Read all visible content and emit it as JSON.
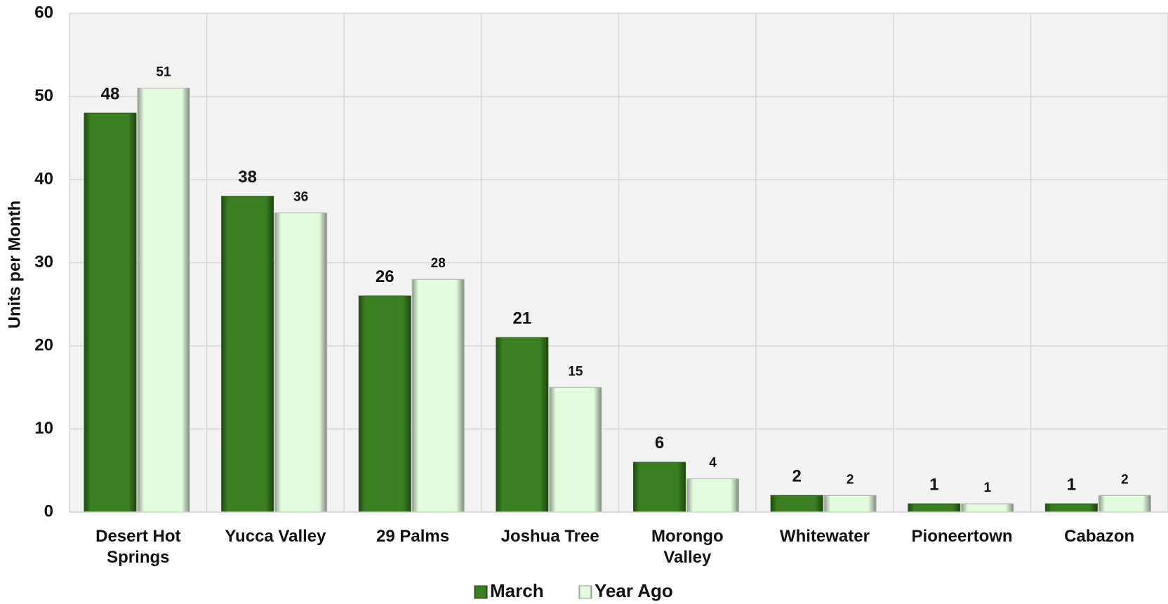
{
  "chart_data": {
    "type": "bar",
    "y_axis_label": "Units per Month",
    "categories": [
      [
        "Desert Hot",
        "Springs"
      ],
      [
        "Yucca Valley"
      ],
      [
        "29 Palms"
      ],
      [
        "Joshua Tree"
      ],
      [
        "Morongo",
        "Valley"
      ],
      [
        "Whitewater"
      ],
      [
        "Pioneertown"
      ],
      [
        "Cabazon"
      ]
    ],
    "series": [
      {
        "name": "March",
        "color": "#3b7f22",
        "values": [
          48,
          38,
          26,
          21,
          6,
          2,
          1,
          1
        ]
      },
      {
        "name": "Year Ago",
        "color": "#e2fbdc",
        "values": [
          51,
          36,
          28,
          15,
          4,
          2,
          1,
          2
        ]
      }
    ],
    "ylim": [
      0,
      60
    ],
    "yticks": [
      0,
      10,
      20,
      30,
      40,
      50,
      60
    ],
    "grid": true,
    "legend": "bottom"
  }
}
